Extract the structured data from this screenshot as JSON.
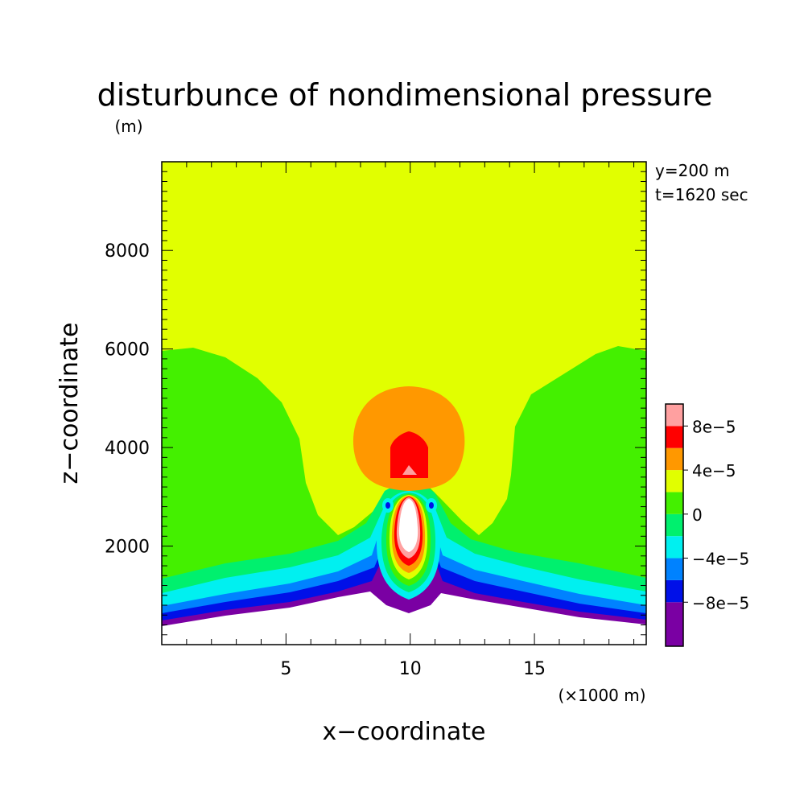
{
  "chart_data": {
    "type": "heatmap",
    "title": "disturbunce of nondimensional pressure",
    "y_unit_label": "(m)",
    "xlabel": "x−coordinate",
    "ylabel": "z−coordinate",
    "x_unit_label": "(×1000 m)",
    "annotations": [
      "y=200 m",
      "t=1620 sec"
    ],
    "xlim": [
      0,
      19.5
    ],
    "ylim": [
      0,
      9800
    ],
    "x_ticks": [
      5,
      10,
      15
    ],
    "x_tick_labels": [
      "5",
      "10",
      "15"
    ],
    "y_ticks": [
      2000,
      4000,
      6000,
      8000
    ],
    "y_tick_labels": [
      "2000",
      "4000",
      "6000",
      "8000"
    ],
    "colorbar": {
      "levels": [
        -0.00012,
        -8e-05,
        -6e-05,
        -4e-05,
        -2e-05,
        0,
        2e-05,
        4e-05,
        6e-05,
        8e-05,
        0.0001
      ],
      "colors": [
        "#7a00a3",
        "#0010e8",
        "#0082ff",
        "#00f0f0",
        "#00f06e",
        "#44f000",
        "#e1ff00",
        "#ff9800",
        "#ff0000",
        "#ffa0a0"
      ],
      "tick_values": [
        -8e-05,
        -4e-05,
        0,
        4e-05,
        8e-05
      ],
      "tick_labels": [
        "−8e−5",
        "−4e−5",
        "0",
        "4e−5",
        "8e−5"
      ]
    },
    "background_color": "#e1ff00",
    "terrain_color": "#ffffff",
    "grid": false
  }
}
